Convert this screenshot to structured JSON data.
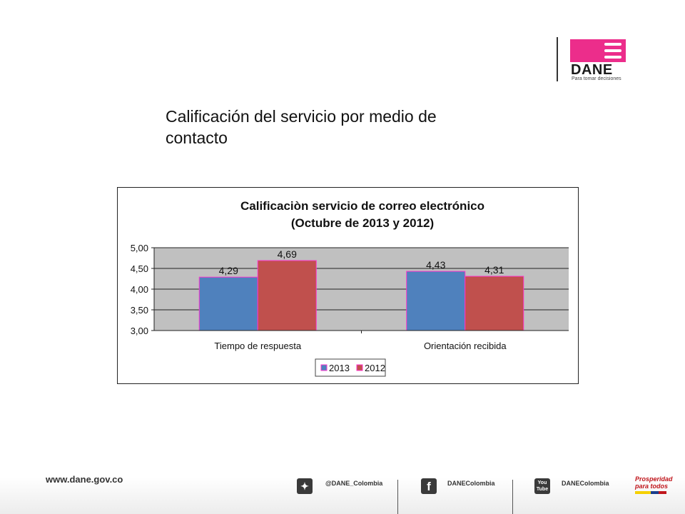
{
  "logo": {
    "wordmark": "DANE",
    "tagline": "Para tomar decisiones",
    "brand_color": "#ec2d8b"
  },
  "slide": {
    "title": "Calificación del servicio por medio de contacto"
  },
  "chart_data": {
    "type": "bar",
    "title": "Calificaciòn servicio de correo electrónico",
    "subtitle": "(Octubre de 2013 y 2012)",
    "categories": [
      "Tiempo de respuesta",
      "Orientación recibida"
    ],
    "series": [
      {
        "name": "2013",
        "values": [
          4.29,
          4.43
        ],
        "labels": [
          "4,29",
          "4,43"
        ],
        "color": "#4f81bd"
      },
      {
        "name": "2012",
        "values": [
          4.69,
          4.31
        ],
        "labels": [
          "4,69",
          "4,31"
        ],
        "color": "#c0504d"
      }
    ],
    "ylim": [
      3.0,
      5.0
    ],
    "yticks": [
      5.0,
      4.5,
      4.0,
      3.5,
      3.0
    ],
    "ytick_labels": [
      "5,00",
      "4,50",
      "4,00",
      "3,50",
      "3,00"
    ],
    "grid": true,
    "legend_position": "bottom-center",
    "plot_background": "#c0c0c0",
    "bar_border_color": "#ff33cc"
  },
  "footer": {
    "url": "www.dane.gov.co",
    "twitter": {
      "icon": "twitter-icon",
      "label": "@DANE_Colombia"
    },
    "facebook": {
      "icon": "facebook-icon",
      "label": "DANEColombia"
    },
    "youtube": {
      "icon": "youtube-icon",
      "label": "DANEColombia",
      "icon_text_top": "You",
      "icon_text_bottom": "Tube"
    },
    "prosperidad": {
      "line1": "Prosperidad",
      "line2": "para todos"
    }
  }
}
